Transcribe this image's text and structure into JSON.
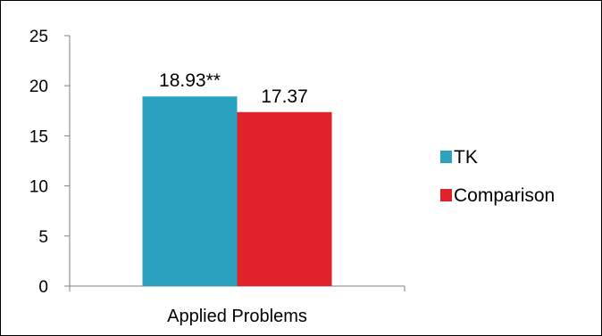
{
  "chart_data": {
    "type": "bar",
    "categories": [
      "Applied Problems"
    ],
    "series": [
      {
        "name": "TK",
        "values": [
          18.93
        ],
        "label": "18.93**",
        "color": "#2aa2c0"
      },
      {
        "name": "Comparison",
        "values": [
          17.37
        ],
        "label": "17.37",
        "color": "#e0222b"
      }
    ],
    "title": "",
    "xlabel": "",
    "ylabel": "",
    "ylim": [
      0,
      25
    ],
    "yticks": [
      "0",
      "5",
      "10",
      "15",
      "20",
      "25"
    ],
    "grid": false,
    "legend_position": "right"
  }
}
